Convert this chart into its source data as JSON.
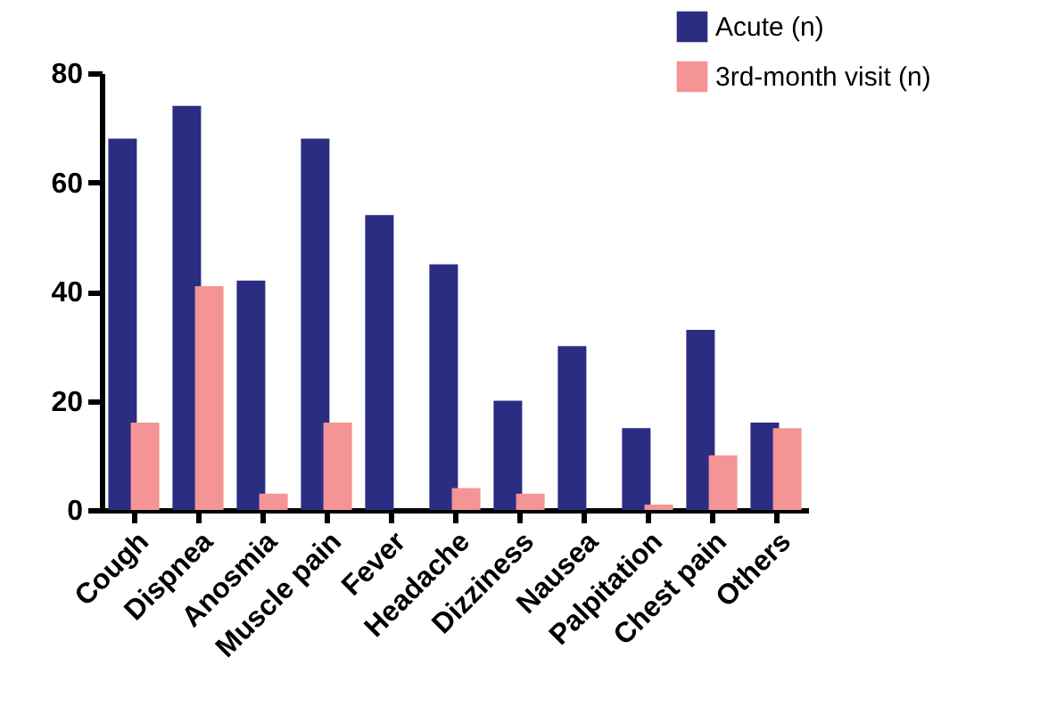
{
  "chart_data": {
    "type": "bar",
    "categories": [
      "Cough",
      "Dispnea",
      "Anosmia",
      "Muscle pain",
      "Fever",
      "Headache",
      "Dizziness",
      "Nausea",
      "Palpitation",
      "Chest pain",
      "Others"
    ],
    "series": [
      {
        "name": "Acute (n)",
        "color": "#2b2d82",
        "values": [
          68,
          74,
          42,
          68,
          54,
          45,
          20,
          30,
          15,
          33,
          16
        ]
      },
      {
        "name": "3rd-month visit (n)",
        "color": "#f49494",
        "values": [
          16,
          41,
          3,
          16,
          0,
          4,
          3,
          0,
          1,
          10,
          15
        ]
      }
    ],
    "ylim": [
      0,
      80
    ],
    "yticks": [
      0,
      20,
      40,
      60,
      80
    ],
    "grid": false,
    "legend": "top right"
  }
}
